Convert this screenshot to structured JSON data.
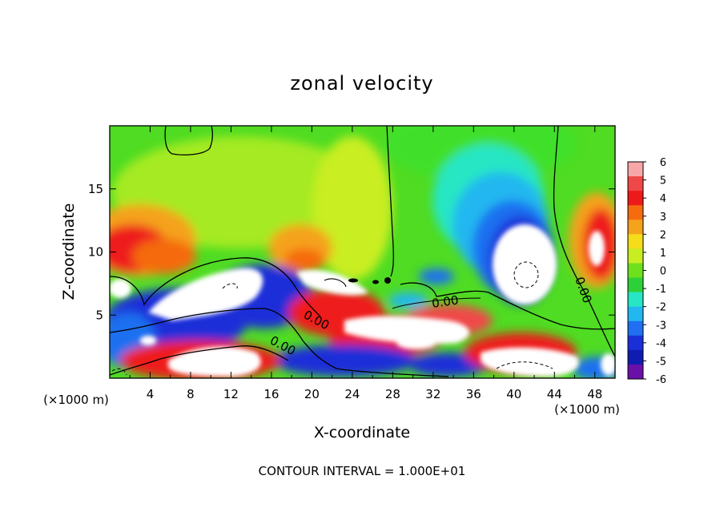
{
  "chart_data": {
    "type": "heatmap",
    "title": "zonal velocity",
    "xlabel": "X-coordinate",
    "ylabel": "Z-coordinate",
    "x_unit_left": "(×1000 m)",
    "x_unit_right": "(×1000 m)",
    "xlim": [
      0,
      50
    ],
    "ylim": [
      0,
      20
    ],
    "x_ticks": [
      4,
      8,
      12,
      16,
      20,
      24,
      28,
      32,
      36,
      40,
      44,
      48
    ],
    "y_ticks": [
      5,
      10,
      15
    ],
    "colorbar": {
      "levels": [
        6,
        5,
        4,
        3,
        2,
        1,
        0,
        -1,
        -2,
        -3,
        -4,
        -5,
        -6
      ],
      "colors": [
        "#f7a7a7",
        "#f04848",
        "#ee1a1a",
        "#f56b10",
        "#f5a21c",
        "#f5dd1a",
        "#c8ee22",
        "#6fe01e",
        "#2ed03a",
        "#27e6c4",
        "#22b7f0",
        "#1f6ff0",
        "#1b2fd8",
        "#101cb0",
        "#6a10a8"
      ],
      "out_of_range_color": "#ffffff"
    },
    "contour_labels": [
      "0.00",
      "0.00",
      "0.00",
      "0.00"
    ],
    "annotation": "CONTOUR INTERVAL = 1.000E+01"
  }
}
